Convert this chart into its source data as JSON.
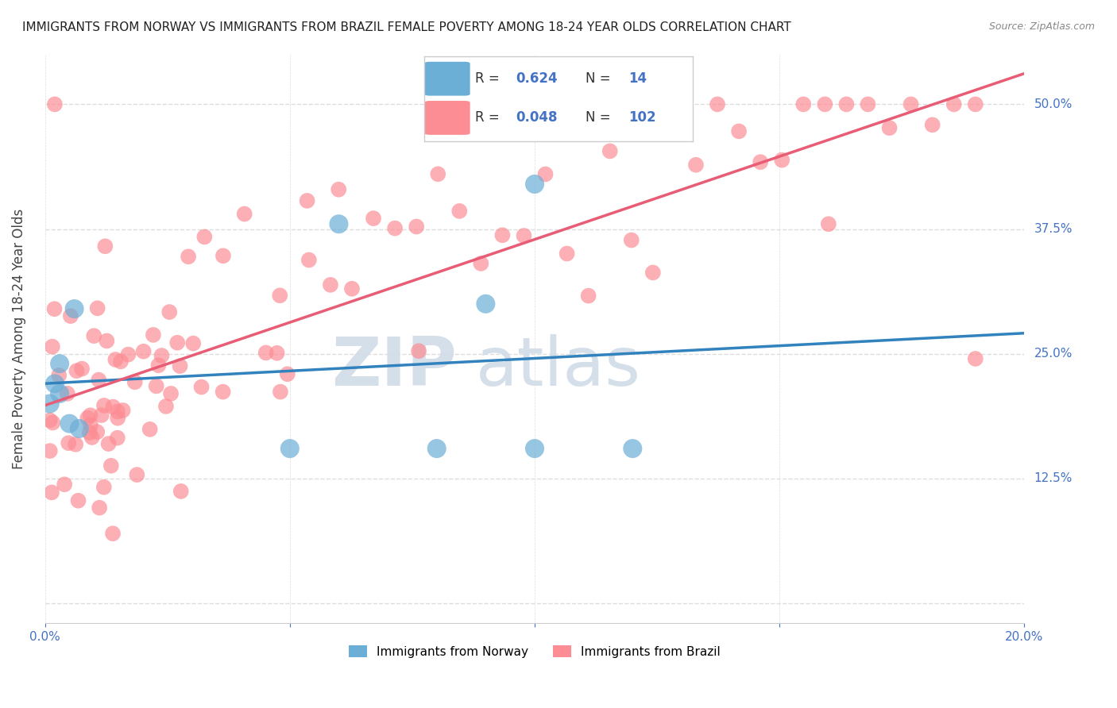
{
  "title": "IMMIGRANTS FROM NORWAY VS IMMIGRANTS FROM BRAZIL FEMALE POVERTY AMONG 18-24 YEAR OLDS CORRELATION CHART",
  "source": "Source: ZipAtlas.com",
  "ylabel": "Female Poverty Among 18-24 Year Olds",
  "xlim": [
    0.0,
    0.2
  ],
  "ylim": [
    -0.02,
    0.55
  ],
  "yticks": [
    0.0,
    0.125,
    0.25,
    0.375,
    0.5
  ],
  "yticklabels": [
    "",
    "12.5%",
    "25.0%",
    "37.5%",
    "50.0%"
  ],
  "norway_R": 0.624,
  "norway_N": 14,
  "brazil_R": 0.048,
  "brazil_N": 102,
  "norway_color": "#6baed6",
  "brazil_color": "#fc8d94",
  "norway_line_color": "#3182bd",
  "brazil_line_color": "#e85d75",
  "background_color": "#ffffff",
  "grid_color": "#dddddd",
  "watermark_color": "#d0dce8",
  "tick_label_color": "#4472c4",
  "stat_label_color": "#4472c4"
}
